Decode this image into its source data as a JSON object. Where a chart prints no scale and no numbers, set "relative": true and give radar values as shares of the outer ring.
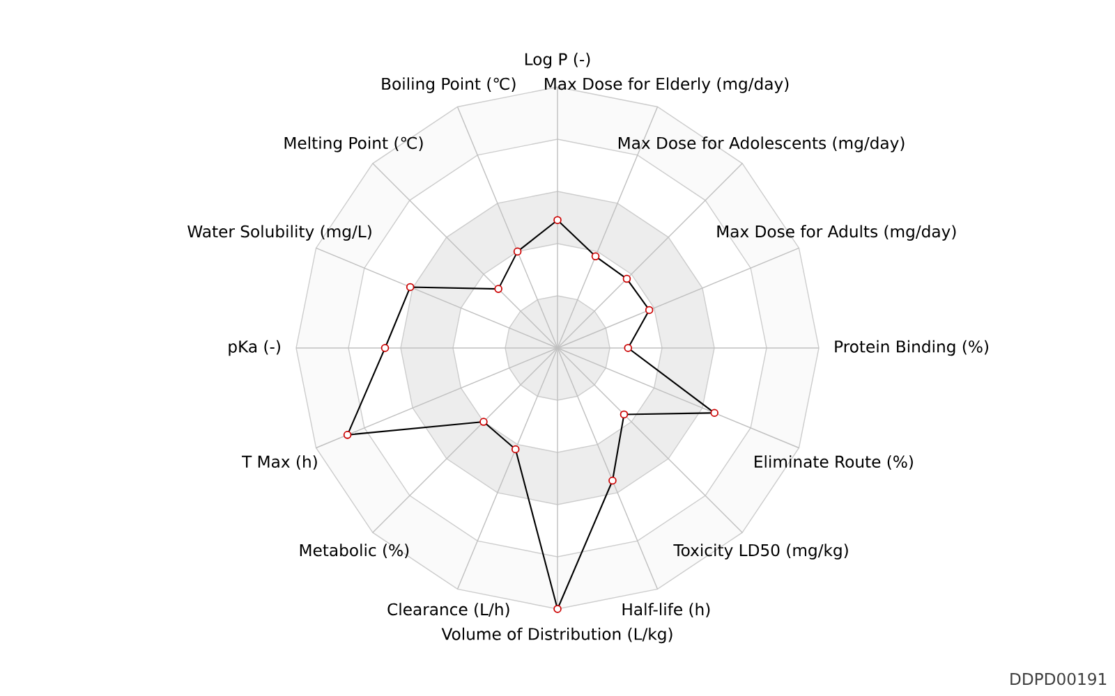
{
  "chart_data": {
    "type": "radar",
    "relative": true,
    "grid": true,
    "marker": "circle",
    "categories": [
      "Log P (-)",
      "Max Dose for Elderly (mg/day)",
      "Max Dose for Adolescents (mg/day)",
      "Max Dose for Adults (mg/day)",
      "Protein Binding (%)",
      "Eliminate Route (%)",
      "Toxicity LD50 (mg/kg)",
      "Half-life (h)",
      "Volume of Distribution (L/kg)",
      "Clearance (L/h)",
      "Metabolic (%)",
      "T Max (h)",
      "pKa (-)",
      "Water Solubility (mg/L)",
      "Melting Point (℃)",
      "Boiling Point (℃)"
    ],
    "series": [
      {
        "color": "#000000",
        "values": [
          0.49,
          0.38,
          0.375,
          0.38,
          0.27,
          0.65,
          0.36,
          0.55,
          1.0,
          0.42,
          0.4,
          0.87,
          0.66,
          0.61,
          0.32,
          0.4
        ]
      }
    ],
    "annotations": [
      "DDPD00191"
    ]
  }
}
